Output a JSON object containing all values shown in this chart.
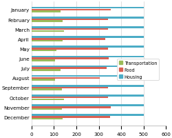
{
  "months": [
    "January",
    "February",
    "March",
    "April",
    "May",
    "June",
    "July",
    "August",
    "September",
    "October",
    "November",
    "December"
  ],
  "transportation": [
    130,
    140,
    145,
    140,
    110,
    105,
    130,
    105,
    135,
    145,
    135,
    140
  ],
  "food": [
    355,
    340,
    340,
    330,
    340,
    345,
    335,
    305,
    340,
    340,
    355,
    350
  ],
  "housing": [
    500,
    500,
    500,
    500,
    500,
    500,
    500,
    500,
    500,
    500,
    500,
    500
  ],
  "transport_color": "#9bbb59",
  "food_color": "#da6053",
  "housing_color": "#4bacc6",
  "background_color": "#ffffff",
  "xlim": [
    0,
    600
  ],
  "xticks": [
    0,
    100,
    200,
    300,
    400,
    500,
    600
  ],
  "legend_labels": [
    "Transportation",
    "Food",
    "Housing"
  ],
  "bar_height": 0.18,
  "bar_gap": 0.19,
  "fontsize": 5.2
}
